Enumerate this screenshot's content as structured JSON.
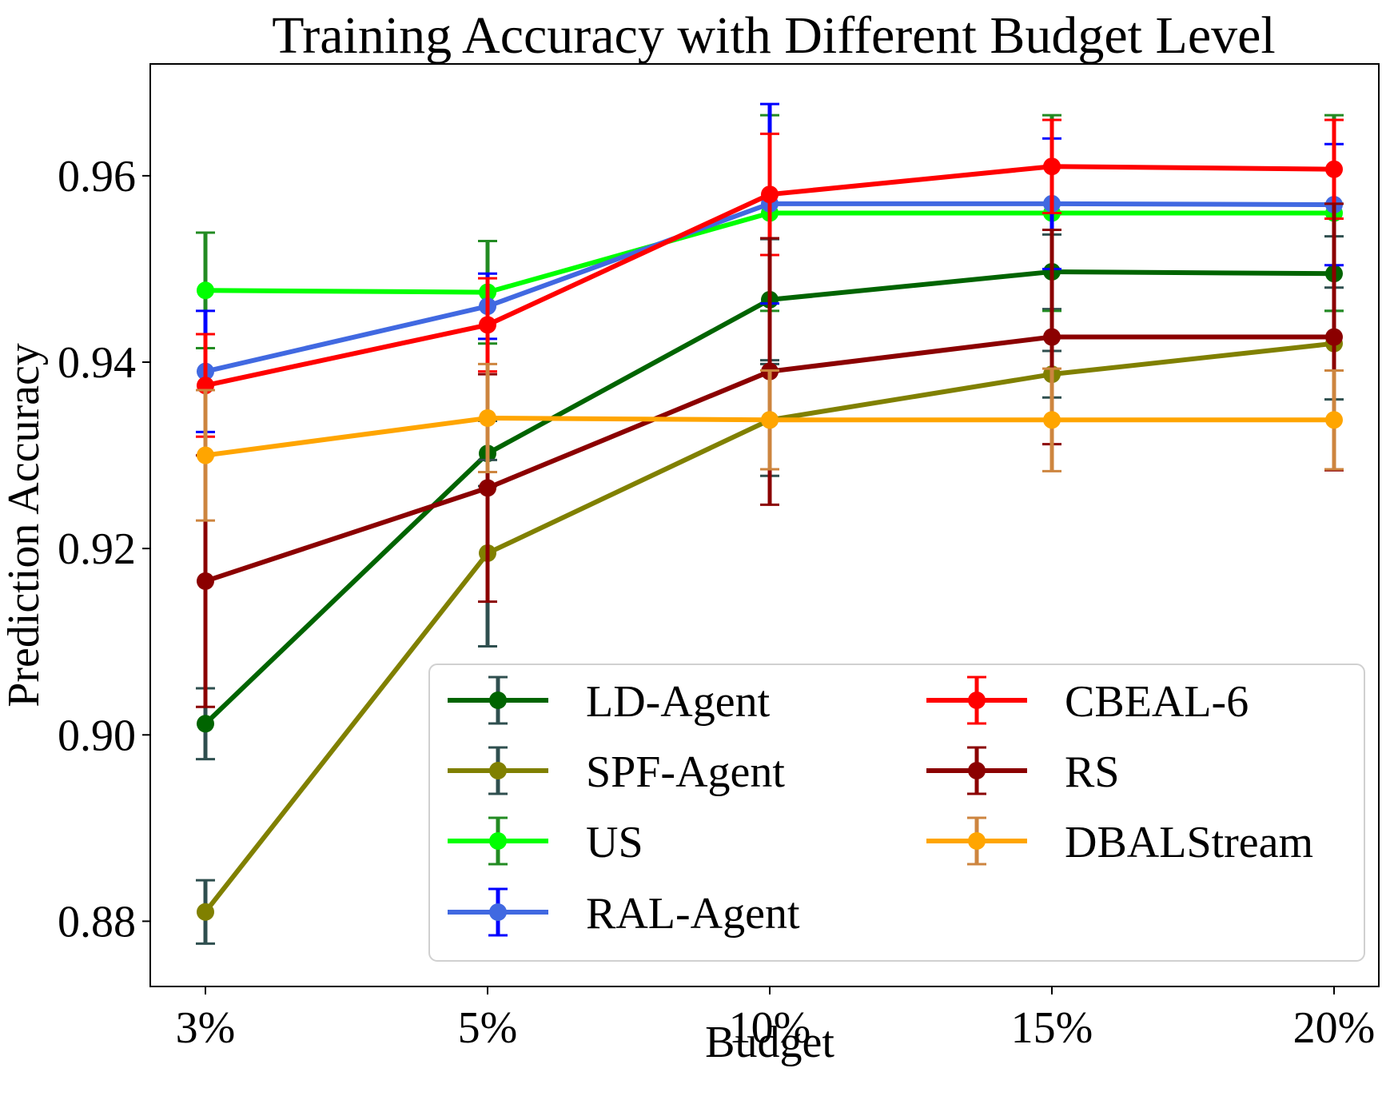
{
  "chart_data": {
    "type": "line",
    "title": "Training Accuracy with Different Budget Level",
    "xlabel": "Budget",
    "ylabel": "Prediction Accuracy",
    "categories": [
      "3%",
      "5%",
      "10%",
      "15%",
      "20%"
    ],
    "ylim": [
      0.873,
      0.972
    ],
    "yticks": [
      0.88,
      0.9,
      0.92,
      0.94,
      0.96
    ],
    "ytick_labels": [
      "0.88",
      "0.90",
      "0.92",
      "0.94",
      "0.96"
    ],
    "grid": false,
    "legend_position": "lower-right",
    "legend_columns": 2,
    "series": [
      {
        "name": "LD-Agent",
        "color": "#006400",
        "err_color": "#2f4f4f",
        "values": [
          0.9012,
          0.9302,
          0.9467,
          0.9497,
          0.9495
        ],
        "errors": [
          0.0038,
          0.0035,
          0.0065,
          0.004,
          0.004
        ]
      },
      {
        "name": "SPF-Agent",
        "color": "#808000",
        "err_color": "#2f4f4f",
        "values": [
          0.881,
          0.9195,
          0.9338,
          0.9387,
          0.942
        ],
        "errors": [
          0.0034,
          0.01,
          0.006,
          0.0025,
          0.006
        ]
      },
      {
        "name": "US",
        "color": "#00ff00",
        "err_color": "#228b22",
        "values": [
          0.9477,
          0.9475,
          0.956,
          0.956,
          0.956
        ],
        "errors": [
          0.0062,
          0.0055,
          0.0105,
          0.0105,
          0.0105
        ]
      },
      {
        "name": "RAL-Agent",
        "color": "#4169e1",
        "err_color": "#0000ff",
        "values": [
          0.939,
          0.946,
          0.957,
          0.957,
          0.9569
        ],
        "errors": [
          0.0065,
          0.0035,
          0.0107,
          0.007,
          0.0065
        ]
      },
      {
        "name": "CBEAL-6",
        "color": "#ff0000",
        "err_color": "#ff0000",
        "values": [
          0.9375,
          0.944,
          0.958,
          0.961,
          0.9607
        ],
        "errors": [
          0.0055,
          0.005,
          0.0065,
          0.005,
          0.0053
        ]
      },
      {
        "name": "RS",
        "color": "#8b0000",
        "err_color": "#8b0000",
        "values": [
          0.9165,
          0.9265,
          0.939,
          0.9427,
          0.9427
        ],
        "errors": [
          0.0135,
          0.0122,
          0.0143,
          0.0115,
          0.0143
        ]
      },
      {
        "name": "DBALStream",
        "color": "#ffa500",
        "err_color": "#cd853f",
        "values": [
          0.93,
          0.934,
          0.9338,
          0.9338,
          0.9338
        ],
        "errors": [
          0.007,
          0.0058,
          0.0053,
          0.0055,
          0.0053
        ]
      }
    ]
  }
}
